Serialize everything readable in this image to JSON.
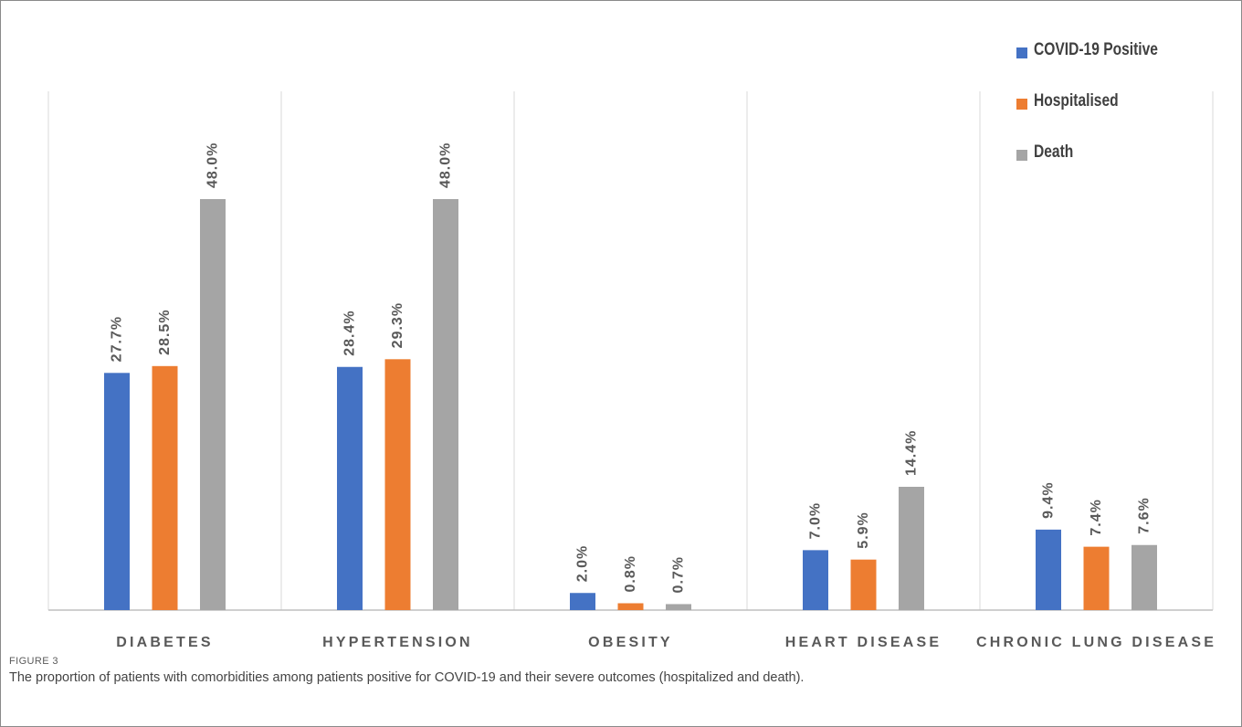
{
  "chart_data": {
    "type": "bar",
    "categories": [
      "DIABETES",
      "HYPERTENSION",
      "OBESITY",
      "HEART DISEASE",
      "CHRONIC LUNG DISEASE"
    ],
    "series": [
      {
        "name": "COVID-19 Positive",
        "color": "#4472c4",
        "values": [
          27.7,
          28.4,
          2.0,
          7.0,
          9.4
        ],
        "labels": [
          "27.7%",
          "28.4%",
          "2.0%",
          "7.0%",
          "9.4%"
        ]
      },
      {
        "name": "Hospitalised",
        "color": "#ed7d31",
        "values": [
          28.5,
          29.3,
          0.8,
          5.9,
          7.4
        ],
        "labels": [
          "28.5%",
          "29.3%",
          "0.8%",
          "5.9%",
          "7.4%"
        ]
      },
      {
        "name": "Death",
        "color": "#a5a5a5",
        "values": [
          48.0,
          48.0,
          0.7,
          14.4,
          7.6
        ],
        "labels": [
          "48.0%",
          "48.0%",
          "0.7%",
          "14.4%",
          "7.6%"
        ]
      }
    ],
    "ylim": [
      0,
      60
    ],
    "unit": "%",
    "grid": "vertical category separators",
    "legend_position": "top-right"
  },
  "caption": {
    "label": "FIGURE 3",
    "text": "The proportion of patients with comorbidities among patients positive for COVID-19 and their severe outcomes (hospitalized and death)."
  }
}
